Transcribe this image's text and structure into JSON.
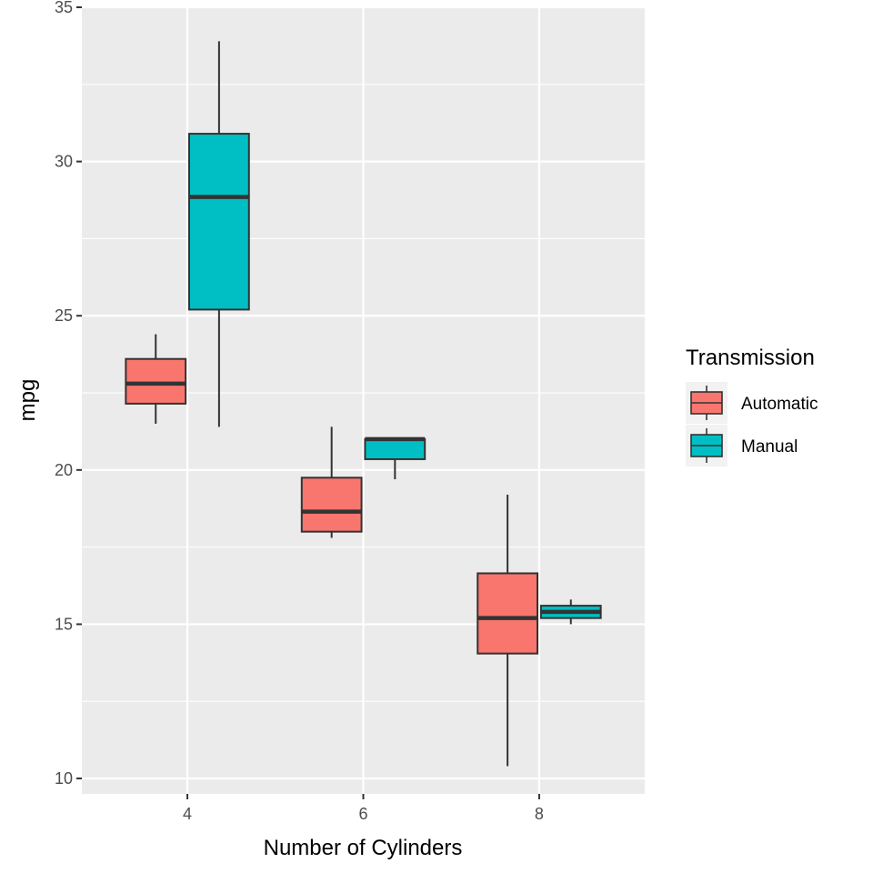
{
  "chart_data": {
    "type": "boxplot",
    "title": "",
    "xlabel": "Number of Cylinders",
    "ylabel": "mpg",
    "categories": [
      "4",
      "6",
      "8"
    ],
    "ylim": [
      9.5,
      35.0
    ],
    "yticks": [
      10,
      15,
      20,
      25,
      30,
      35
    ],
    "grid": true,
    "legend": {
      "title": "Transmission",
      "position": "right"
    },
    "series": [
      {
        "name": "Automatic",
        "color": "#F8766D",
        "boxes": [
          {
            "category": "4",
            "min": 21.5,
            "q1": 22.15,
            "median": 22.8,
            "q3": 23.6,
            "max": 24.4
          },
          {
            "category": "6",
            "min": 17.8,
            "q1": 18.0,
            "median": 18.65,
            "q3": 19.75,
            "max": 21.4
          },
          {
            "category": "8",
            "min": 10.4,
            "q1": 14.05,
            "median": 15.2,
            "q3": 16.65,
            "max": 19.2
          }
        ]
      },
      {
        "name": "Manual",
        "color": "#00BFC4",
        "boxes": [
          {
            "category": "4",
            "min": 21.4,
            "q1": 25.2,
            "median": 28.85,
            "q3": 30.9,
            "max": 33.9
          },
          {
            "category": "6",
            "min": 19.7,
            "q1": 20.35,
            "median": 21.0,
            "q3": 21.0,
            "max": 21.0
          },
          {
            "category": "8",
            "min": 15.0,
            "q1": 15.2,
            "median": 15.4,
            "q3": 15.6,
            "max": 15.8
          }
        ]
      }
    ]
  }
}
